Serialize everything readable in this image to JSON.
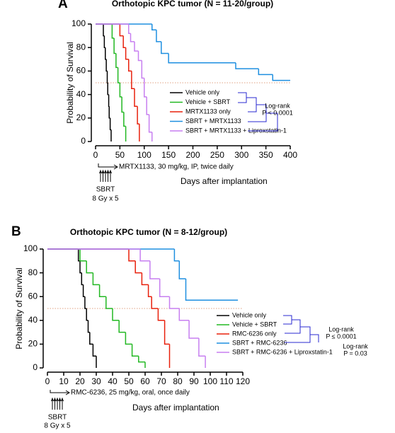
{
  "chart_data": [
    {
      "type": "step",
      "panel": "A",
      "title": "Orthotopic KPC tumor (N = 11-20/group)",
      "xlabel": "Days after implantation",
      "ylabel": "Probability of Survival",
      "xlim": [
        0,
        400
      ],
      "ylim": [
        0,
        100
      ],
      "xticks": [
        0,
        50,
        100,
        150,
        200,
        250,
        300,
        350,
        400
      ],
      "yticks": [
        0,
        20,
        40,
        60,
        80,
        100
      ],
      "reference_line": 50,
      "legend": "lower right",
      "series": [
        {
          "name": "Vehicle only",
          "color": "#000000",
          "x": [
            0,
            16,
            18,
            20,
            22,
            24,
            25,
            27,
            28,
            30,
            32
          ],
          "values": [
            100,
            90,
            80,
            70,
            60,
            50,
            40,
            30,
            20,
            10,
            0
          ]
        },
        {
          "name": "Vehicle + SBRT",
          "color": "#22b822",
          "x": [
            0,
            34,
            38,
            42,
            46,
            50,
            54,
            58,
            62
          ],
          "values": [
            100,
            88,
            75,
            63,
            50,
            38,
            25,
            13,
            0
          ]
        },
        {
          "name": "MRTX1133 only",
          "color": "#e8200c",
          "x": [
            0,
            50,
            57,
            62,
            68,
            74,
            80,
            86,
            90
          ],
          "values": [
            100,
            90,
            80,
            70,
            60,
            45,
            30,
            15,
            0
          ]
        },
        {
          "name": "SBRT + MRTX1133",
          "color": "#1e8fe0",
          "x": [
            0,
            116,
            125,
            135,
            150,
            288,
            335,
            364,
            400
          ],
          "values": [
            100,
            95,
            85,
            75,
            67,
            62,
            57,
            52,
            52
          ]
        },
        {
          "name": "SBRT + MRTX1133 + Liproxstatin-1",
          "color": "#c77ff0",
          "x": [
            0,
            68,
            72,
            80,
            88,
            95,
            100,
            105,
            110,
            116
          ],
          "values": [
            100,
            92,
            85,
            77,
            69,
            54,
            38,
            23,
            8,
            0
          ]
        }
      ],
      "annotations": {
        "treatment": "MRTX1133, 30 mg/kg, IP, twice daily",
        "sbrt": "SBRT",
        "dose": "8 Gy x 5",
        "logrank": [
          {
            "label": "Log-rank",
            "p": "P < 0.0001",
            "color": "#2a2ad0"
          }
        ]
      }
    },
    {
      "type": "step",
      "panel": "B",
      "title": "Orthotopic KPC tumor (N = 8-12/group)",
      "xlabel": "Days after implantation",
      "ylabel": "Probability of Survival",
      "xlim": [
        0,
        120
      ],
      "ylim": [
        0,
        100
      ],
      "xticks": [
        0,
        10,
        20,
        30,
        40,
        50,
        60,
        70,
        80,
        90,
        100,
        110,
        120
      ],
      "yticks": [
        0,
        20,
        40,
        60,
        80,
        100
      ],
      "reference_line": 50,
      "legend": "lower right",
      "series": [
        {
          "name": "Vehicle only",
          "color": "#000000",
          "x": [
            0,
            19,
            20,
            21,
            22,
            23,
            24,
            25,
            26,
            28,
            30
          ],
          "values": [
            100,
            90,
            80,
            70,
            60,
            50,
            40,
            30,
            20,
            10,
            0
          ]
        },
        {
          "name": "Vehicle + SBRT",
          "color": "#22b822",
          "x": [
            0,
            20,
            24,
            28,
            32,
            36,
            40,
            44,
            48,
            52,
            56,
            60
          ],
          "values": [
            100,
            90,
            80,
            70,
            60,
            50,
            40,
            30,
            20,
            10,
            5,
            0
          ]
        },
        {
          "name": "RMC-6236 only",
          "color": "#e8200c",
          "x": [
            0,
            50,
            54,
            58,
            62,
            64,
            68,
            72,
            75
          ],
          "values": [
            100,
            90,
            80,
            70,
            60,
            50,
            40,
            20,
            0
          ]
        },
        {
          "name": "SBRT + RMC-6236",
          "color": "#1e8fe0",
          "x": [
            0,
            78,
            81,
            85,
            117
          ],
          "values": [
            100,
            90,
            75,
            57,
            57
          ]
        },
        {
          "name": "SBRT + RMC-6236 + Liproxstatin-1",
          "color": "#c77ff0",
          "x": [
            0,
            57,
            63,
            69,
            75,
            81,
            87,
            93,
            97
          ],
          "values": [
            100,
            90,
            75,
            60,
            50,
            40,
            25,
            10,
            0
          ]
        }
      ],
      "annotations": {
        "treatment": "RMC-6236, 25 mg/kg, oral, once daily",
        "sbrt": "SBRT",
        "dose": "8 Gy x 5",
        "logrank": [
          {
            "label": "Log-rank",
            "p": "P ≤ 0.0001",
            "color": "#2a2ad0"
          },
          {
            "label": "Log-rank",
            "p": "P = 0.03",
            "color": "#e020d0"
          }
        ]
      }
    }
  ]
}
